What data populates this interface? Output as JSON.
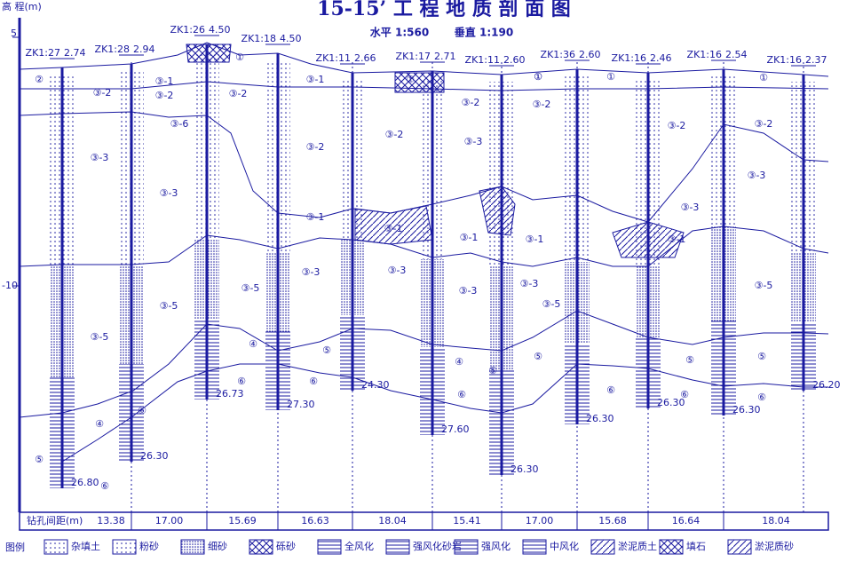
{
  "header": {
    "title": "15-15’ 工 程 地 质 剖 面 图",
    "scale_h": "水平 1:560",
    "scale_v": "垂直 1:190"
  },
  "axis": {
    "label": "高 程(m)",
    "ticks": [
      "5",
      "-10"
    ]
  },
  "boreholes": [
    {
      "id": "ZK1:27",
      "top": "2.74",
      "bottom": "26.80"
    },
    {
      "id": "ZK1:28",
      "top": "2.94",
      "bottom": "26.30"
    },
    {
      "id": "ZK1:26",
      "top": "4.50",
      "bottom": "26.73"
    },
    {
      "id": "ZK1:18",
      "top": "4.50",
      "bottom": "27.30"
    },
    {
      "id": "ZK1:11",
      "top": "2.66",
      "bottom": "24.30"
    },
    {
      "id": "ZK1:17",
      "top": "2.71",
      "bottom": "27.60"
    },
    {
      "id": "ZK1:11",
      "top": "2.60",
      "bottom": "26.30"
    },
    {
      "id": "ZK1:36",
      "top": "2.60",
      "bottom": "26.30"
    },
    {
      "id": "ZK1:16",
      "top": "2.46",
      "bottom": "26.30"
    },
    {
      "id": "ZK1:16",
      "top": "2.54",
      "bottom": "26.30"
    },
    {
      "id": "ZK1:16",
      "top": "2.37",
      "bottom": "26.20"
    }
  ],
  "layer_labels": [
    "②",
    "③-2",
    "③-1",
    "③-2",
    "③-6",
    "③-3",
    "③-3",
    "③-5",
    "③-5",
    "④",
    "⑤",
    "⑥",
    "⑥",
    "①",
    "③-2",
    "③-1",
    "③-3",
    "③-5",
    "④",
    "⑥",
    "③-1",
    "③-2",
    "①",
    "③-2",
    "③-1",
    "③-3",
    "⑤",
    "⑥",
    "①",
    "③-2",
    "③-3",
    "③-1",
    "③-3",
    "④",
    "⑤",
    "⑥",
    "①",
    "③-2",
    "③-1",
    "③-3",
    "③-5",
    "⑤",
    "⑥",
    "①",
    "③-2",
    "③-3",
    "③-1",
    "⑤",
    "⑥",
    "①",
    "③-2",
    "③-3",
    "③-5",
    "⑤",
    "⑥"
  ],
  "spacing": {
    "header": "钻孔间距(m)",
    "values": [
      "13.38",
      "17.00",
      "15.69",
      "16.63",
      "18.04",
      "15.41",
      "17.00",
      "15.68",
      "16.64",
      "18.04"
    ]
  },
  "legend": {
    "title": "图例",
    "items": [
      "杂填土",
      "粉砂",
      "细砂",
      "砾砂",
      "全风化",
      "强风化砂岩",
      "强风化",
      "中风化",
      "淤泥质土",
      "填石",
      "淤泥质砂"
    ]
  }
}
